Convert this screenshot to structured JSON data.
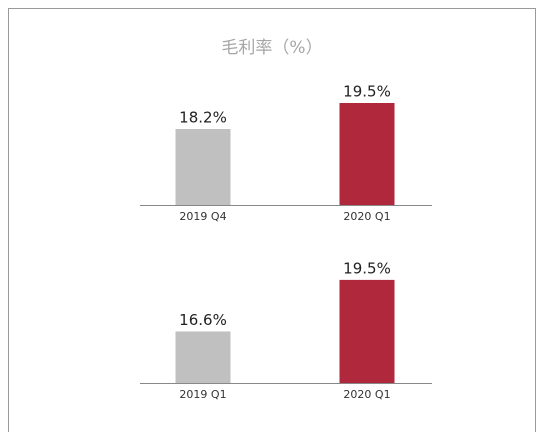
{
  "title": "毛利率（%）",
  "chart_data": [
    {
      "type": "bar",
      "categories": [
        "2019 Q4",
        "2020 Q1"
      ],
      "values": [
        18.2,
        19.5
      ],
      "value_labels": [
        "18.2%",
        "19.5%"
      ],
      "colors": [
        "#c0c0c0",
        "#b0283c"
      ],
      "ylim": [
        14.4,
        20
      ]
    },
    {
      "type": "bar",
      "categories": [
        "2019 Q1",
        "2020 Q1"
      ],
      "values": [
        16.6,
        19.5
      ],
      "value_labels": [
        "16.6%",
        "19.5%"
      ],
      "colors": [
        "#c0c0c0",
        "#b0283c"
      ],
      "ylim": [
        13.7,
        20
      ]
    }
  ]
}
